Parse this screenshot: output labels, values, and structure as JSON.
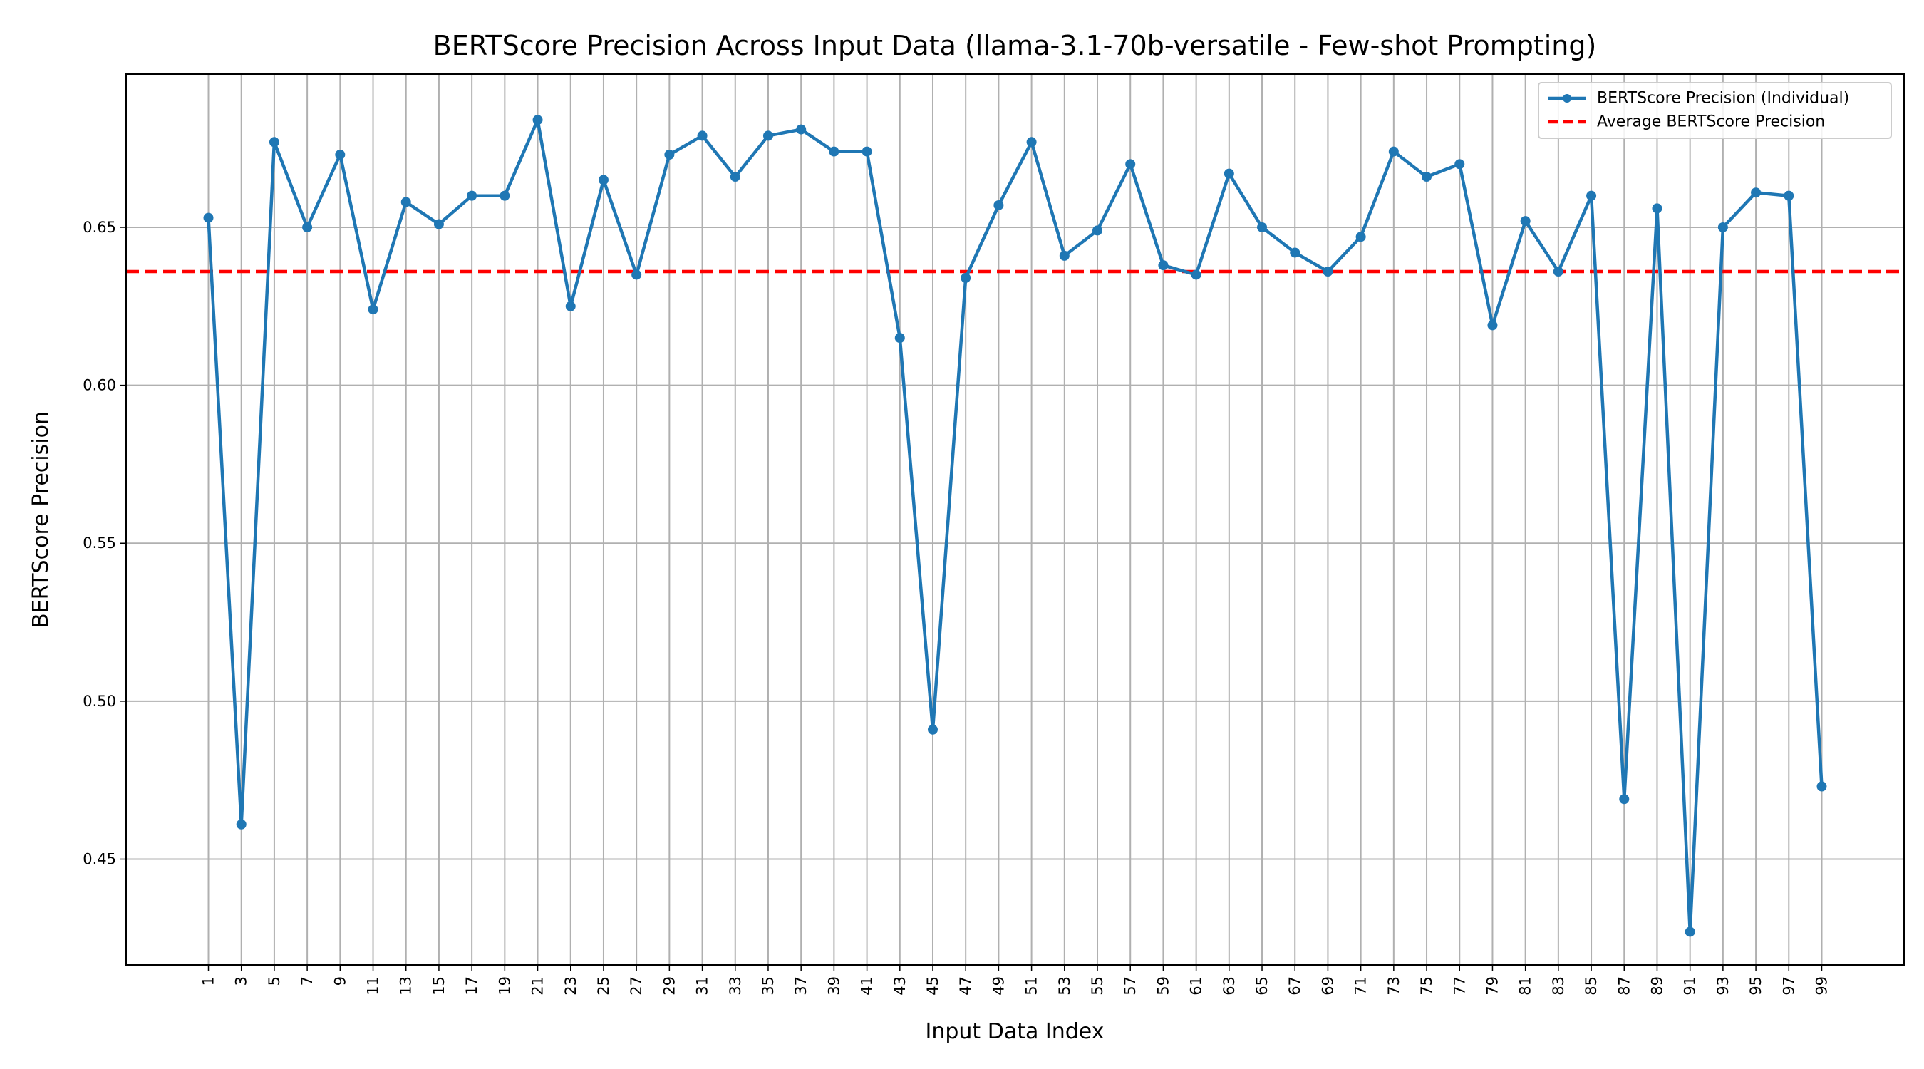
{
  "chart_data": {
    "type": "line",
    "title": "BERTScore Precision Across Input Data (llama-3.1-70b-versatile - Few-shot Prompting)",
    "xlabel": "Input Data Index",
    "ylabel": "BERTScore Precision",
    "x": [
      1,
      3,
      5,
      7,
      9,
      11,
      13,
      15,
      17,
      19,
      21,
      23,
      25,
      27,
      29,
      31,
      33,
      35,
      37,
      39,
      41,
      43,
      45,
      47,
      49,
      51,
      53,
      55,
      57,
      59,
      61,
      63,
      65,
      67,
      69,
      71,
      73,
      75,
      77,
      79,
      81,
      83,
      85,
      87,
      89,
      91,
      93,
      95,
      97,
      99
    ],
    "xticks": [
      "1",
      "3",
      "5",
      "7",
      "9",
      "11",
      "13",
      "15",
      "17",
      "19",
      "21",
      "23",
      "25",
      "27",
      "29",
      "31",
      "33",
      "35",
      "37",
      "39",
      "41",
      "43",
      "45",
      "47",
      "49",
      "51",
      "53",
      "55",
      "57",
      "59",
      "61",
      "63",
      "65",
      "67",
      "69",
      "71",
      "73",
      "75",
      "77",
      "79",
      "81",
      "83",
      "85,",
      "87",
      "89",
      "91",
      "93",
      "95",
      "97",
      "99"
    ],
    "yticks": [
      "0.45",
      "0.50",
      "0.55",
      "0.60",
      "0.65"
    ],
    "xlim": [
      -4,
      104
    ],
    "ylim": [
      0.4165,
      0.6985
    ],
    "grid": true,
    "legend_position": "top-right",
    "series": [
      {
        "name": "BERTScore Precision (Individual)",
        "color": "#1f77b4",
        "values": [
          0.653,
          0.461,
          0.677,
          0.65,
          0.673,
          0.624,
          0.658,
          0.651,
          0.66,
          0.66,
          0.684,
          0.625,
          0.665,
          0.635,
          0.673,
          0.679,
          0.666,
          0.679,
          0.681,
          0.674,
          0.674,
          0.615,
          0.491,
          0.634,
          0.657,
          0.677,
          0.641,
          0.649,
          0.67,
          0.638,
          0.635,
          0.667,
          0.65,
          0.642,
          0.636,
          0.647,
          0.674,
          0.666,
          0.67,
          0.619,
          0.652,
          0.636,
          0.66,
          0.469,
          0.656,
          0.427,
          0.65,
          0.661,
          0.66,
          0.473
        ]
      }
    ],
    "reference_lines": [
      {
        "name": "Average BERTScore Precision",
        "y": 0.636,
        "color": "#ff0000",
        "style": "dashed"
      }
    ]
  }
}
